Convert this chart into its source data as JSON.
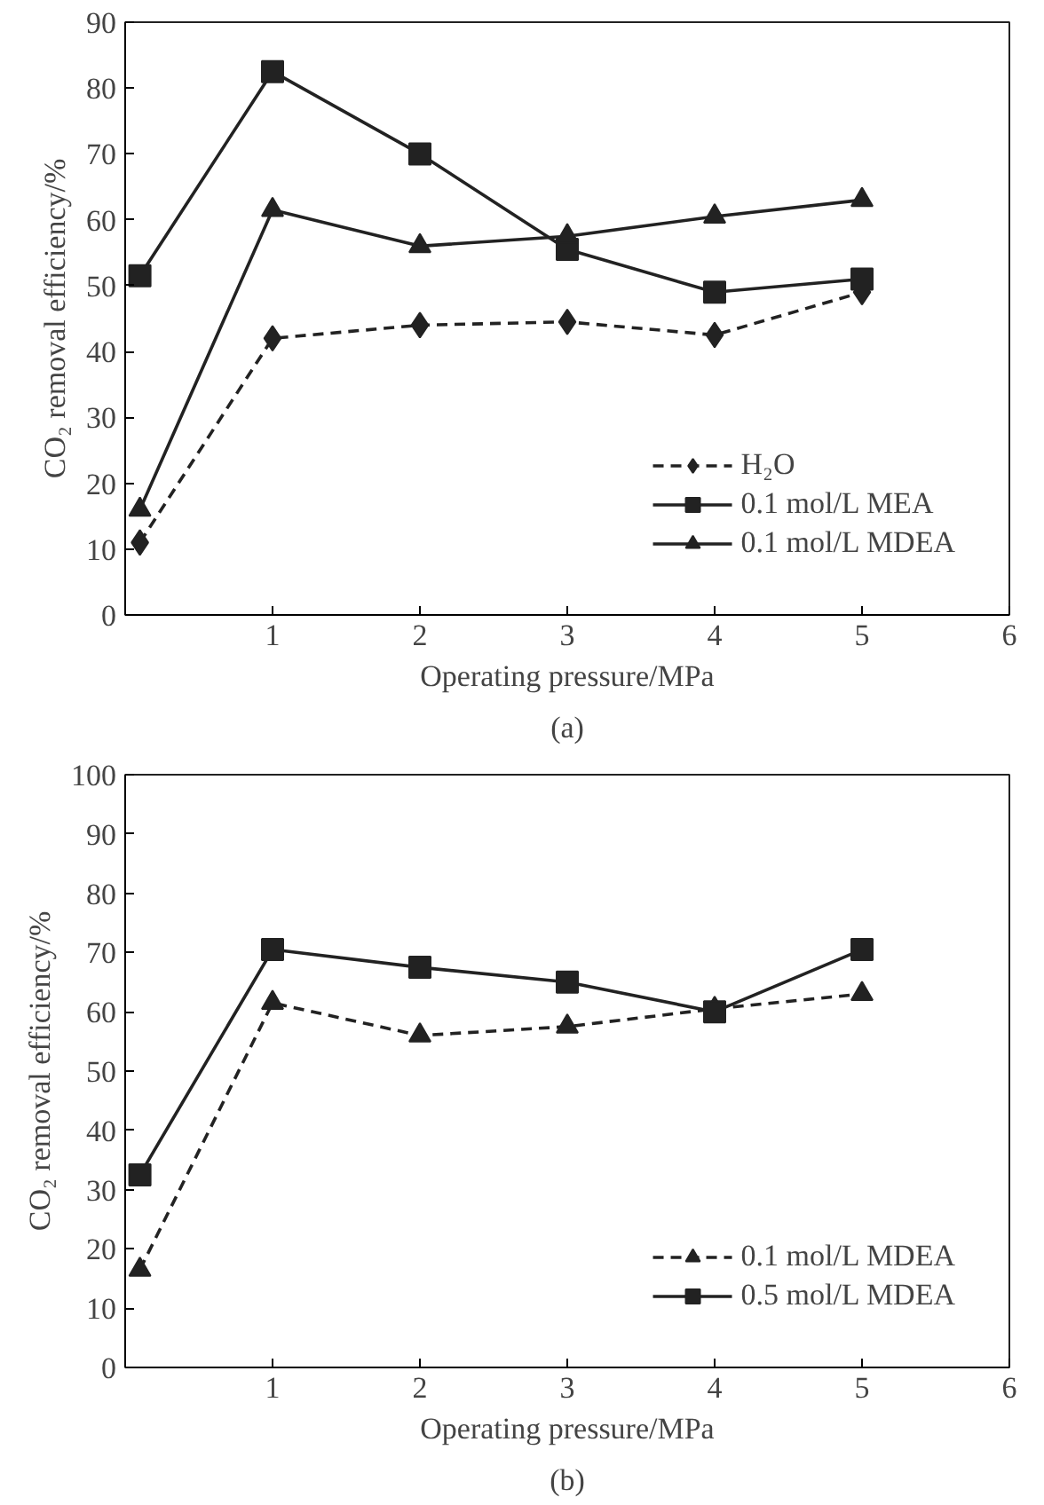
{
  "chart_data": [
    {
      "type": "line",
      "xlabel": "Operating pressure/MPa",
      "ylabel": "CO₂ removal efficiency/%",
      "annotations": [
        "(a)"
      ],
      "x": [
        0.1,
        1,
        2,
        3,
        4,
        5
      ],
      "xlim": [
        0,
        6
      ],
      "xticks": [
        1,
        2,
        3,
        4,
        5,
        6
      ],
      "ylim": [
        0,
        90
      ],
      "yticks": [
        0,
        10,
        20,
        30,
        40,
        50,
        60,
        70,
        80,
        90
      ],
      "grid": false,
      "legend": "bottom right",
      "series": [
        {
          "name": "H₂O",
          "color": "#222222",
          "marker": "diamond",
          "line_style": "dashed",
          "values": [
            11,
            42,
            44,
            44.5,
            42.5,
            49
          ]
        },
        {
          "name": "0.1 mol/L MEA",
          "color": "#222222",
          "marker": "square",
          "line_style": "solid",
          "values": [
            51.5,
            82.5,
            70,
            55.5,
            49,
            51
          ]
        },
        {
          "name": "0.1 mol/L MDEA",
          "color": "#222222",
          "marker": "triangle",
          "line_style": "solid",
          "values": [
            16,
            61.5,
            56,
            57.5,
            60.5,
            63
          ]
        }
      ]
    },
    {
      "type": "line",
      "xlabel": "Operating pressure/MPa",
      "ylabel": "CO₂ removal efficiency/%",
      "annotations": [
        "(b)"
      ],
      "x": [
        0.1,
        1,
        2,
        3,
        4,
        5
      ],
      "xlim": [
        0,
        6
      ],
      "xticks": [
        1,
        2,
        3,
        4,
        5,
        6
      ],
      "ylim": [
        0,
        100
      ],
      "yticks": [
        0,
        10,
        20,
        30,
        40,
        50,
        60,
        70,
        80,
        90,
        100
      ],
      "grid": false,
      "legend": "bottom right",
      "series": [
        {
          "name": "0.1 mol/L MDEA",
          "color": "#222222",
          "marker": "triangle",
          "line_style": "dashed",
          "values": [
            16.5,
            61.5,
            56,
            57.5,
            60.5,
            63
          ]
        },
        {
          "name": "0.5 mol/L MDEA",
          "color": "#222222",
          "marker": "square",
          "line_style": "solid",
          "values": [
            32.5,
            70.5,
            67.5,
            65,
            60,
            70.5
          ]
        }
      ]
    }
  ]
}
